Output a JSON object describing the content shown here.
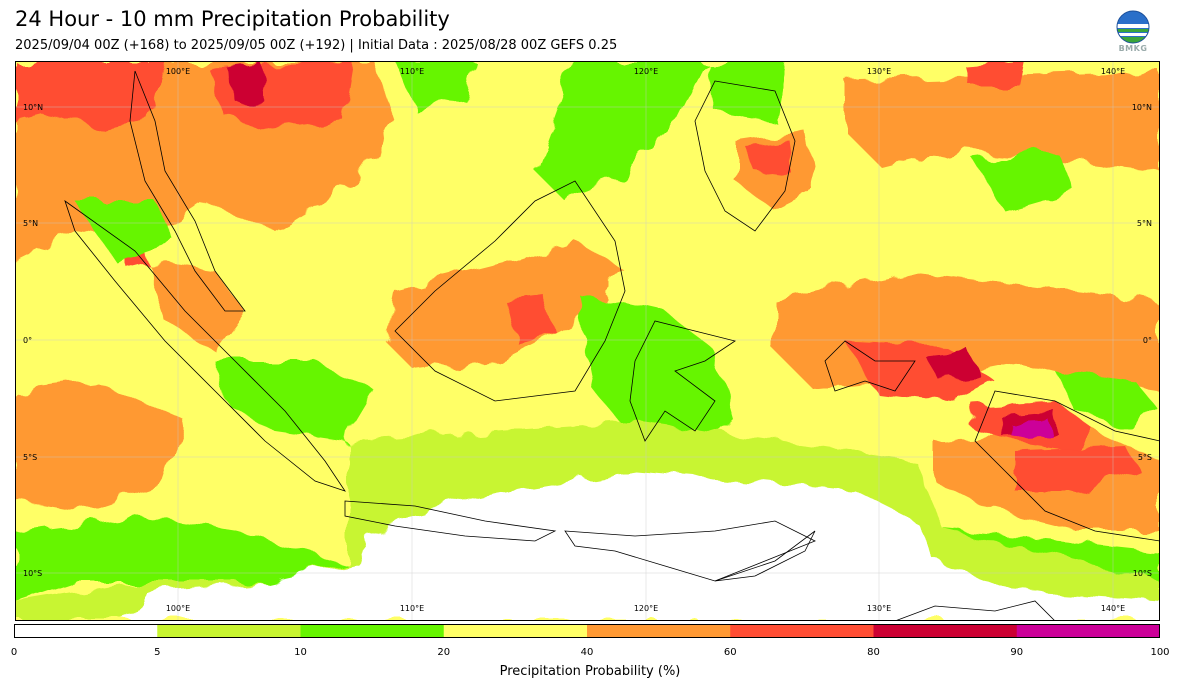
{
  "header": {
    "title": "24 Hour - 10 mm Precipitation Probability",
    "subtitle": "2025/09/04 00Z (+168) to 2025/09/05 00Z (+192) | Initial Data : 2025/08/28 00Z GEFS 0.25",
    "logo_text": "BMKG"
  },
  "map": {
    "lon_labels_top": [
      "100°E",
      "110°E",
      "120°E",
      "130°E",
      "140°E"
    ],
    "lon_labels_bottom": [
      "100°E",
      "110°E",
      "120°E",
      "130°E",
      "140°E"
    ],
    "lat_labels_left": [
      "10°N",
      "5°N",
      "0°",
      "5°S",
      "10°S"
    ],
    "lat_labels_right": [
      "10°N",
      "5°N",
      "0°",
      "5°S",
      "10°S"
    ]
  },
  "colorbar": {
    "ticks": [
      "0",
      "5",
      "10",
      "20",
      "40",
      "60",
      "80",
      "90",
      "100"
    ],
    "colors": [
      "#ffffff",
      "#c8f530",
      "#66f500",
      "#ffff66",
      "#ff9933",
      "#ff4d33",
      "#cc0033",
      "#cc0099"
    ],
    "label": "Precipitation Probability (%)"
  }
}
